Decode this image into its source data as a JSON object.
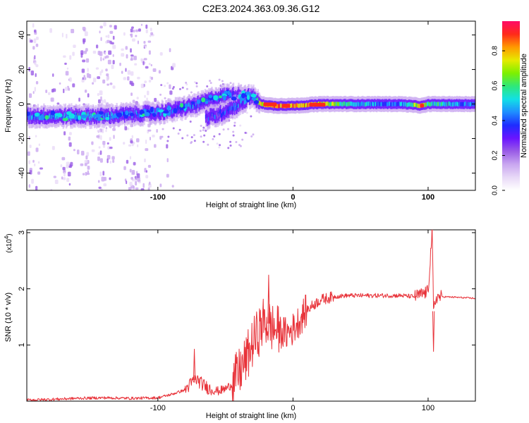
{
  "title": "C2E3.2024.363.09.36.G12",
  "colors": {
    "snr_line": "#e8333a",
    "spectrogram_background": "#ffffff",
    "colormap": [
      "#ffffff",
      "#e8d9f7",
      "#c9a6f0",
      "#9a5ce6",
      "#6a14ff",
      "#1e2cff",
      "#1f8dff",
      "#12e0e6",
      "#2ee87a",
      "#7df000",
      "#e6ea00",
      "#ff9a00",
      "#ff2a1a",
      "#ff0a66"
    ]
  },
  "chart_data": [
    {
      "type": "heatmap",
      "xlabel": "Height of straight line (km)",
      "ylabel": "Frequency (Hz)",
      "xlim": [
        -197,
        135
      ],
      "ylim": [
        -50,
        48
      ],
      "xticks": [
        -100,
        0,
        100
      ],
      "xtick_labels": [
        "-100",
        "0",
        "100"
      ],
      "yticks": [
        -40,
        -20,
        0,
        20,
        40
      ],
      "ytick_labels": [
        "-40",
        "-20",
        "0",
        "20",
        "40"
      ],
      "grid": false,
      "colorbar": {
        "label": "Normalized spectral amplitude",
        "range": [
          0,
          0.97
        ],
        "ticks": [
          0.0,
          0.2,
          0.4,
          0.6,
          0.8
        ],
        "tick_labels": [
          "0.0",
          "0.2",
          "0.4",
          "0.6",
          "0.8"
        ]
      },
      "ridge": [
        {
          "x": -197,
          "f": -7,
          "a": 0.42
        },
        {
          "x": -180,
          "f": -7,
          "a": 0.45
        },
        {
          "x": -160,
          "f": -7,
          "a": 0.5
        },
        {
          "x": -140,
          "f": -7,
          "a": 0.48
        },
        {
          "x": -120,
          "f": -6,
          "a": 0.42
        },
        {
          "x": -100,
          "f": -5,
          "a": 0.38
        },
        {
          "x": -85,
          "f": -3,
          "a": 0.42
        },
        {
          "x": -70,
          "f": 0,
          "a": 0.42
        },
        {
          "x": -60,
          "f": 3,
          "a": 0.38
        },
        {
          "x": -50,
          "f": 5,
          "a": 0.35
        },
        {
          "x": -40,
          "f": 5,
          "a": 0.4
        },
        {
          "x": -30,
          "f": 4,
          "a": 0.42
        },
        {
          "x": -24,
          "f": 0,
          "a": 0.75
        },
        {
          "x": -15,
          "f": -1,
          "a": 0.85
        },
        {
          "x": 0,
          "f": -1,
          "a": 0.85
        },
        {
          "x": 20,
          "f": 0,
          "a": 0.8
        },
        {
          "x": 40,
          "f": 0,
          "a": 0.55
        },
        {
          "x": 60,
          "f": 0,
          "a": 0.45
        },
        {
          "x": 80,
          "f": 0,
          "a": 0.45
        },
        {
          "x": 95,
          "f": -1,
          "a": 0.8
        },
        {
          "x": 100,
          "f": 0,
          "a": 0.6
        },
        {
          "x": 135,
          "f": 0,
          "a": 0.4
        }
      ],
      "branch": [
        {
          "x": -65,
          "f": -8,
          "a": 0.35
        },
        {
          "x": -55,
          "f": -6,
          "a": 0.35
        },
        {
          "x": -45,
          "f": -2,
          "a": 0.4
        },
        {
          "x": -35,
          "f": 2,
          "a": 0.42
        }
      ],
      "noise_columns_x": [
        -193,
        -168,
        -155,
        -143,
        -136,
        -123,
        -118,
        -108
      ]
    },
    {
      "type": "line",
      "xlabel": "Height of straight line (km)",
      "ylabel": "SNR (10 * v/v)",
      "y_multiplier": "(x10^4)",
      "y_multiplier_base": "(x10",
      "y_multiplier_exp": "4",
      "xlim": [
        -197,
        135
      ],
      "ylim": [
        0,
        3.05
      ],
      "xticks": [
        -100,
        0,
        100
      ],
      "xtick_labels": [
        "-100",
        "0",
        "100"
      ],
      "yticks": [
        1,
        2,
        3
      ],
      "ytick_labels": [
        "1",
        "2",
        "3"
      ],
      "grid": false,
      "series": [
        {
          "x": [
            -197,
            -180,
            -160,
            -140,
            -120,
            -100,
            -90,
            -80,
            -72,
            -66,
            -60,
            -55,
            -50,
            -45,
            -40,
            -35,
            -30,
            -25,
            -22,
            -18,
            -15,
            -10,
            -5,
            0,
            5,
            10,
            20,
            30,
            40,
            50,
            60,
            70,
            80,
            90,
            95,
            100,
            103,
            104,
            106,
            110,
            120,
            135
          ],
          "y": [
            0.02,
            0.03,
            0.05,
            0.06,
            0.05,
            0.06,
            0.12,
            0.2,
            0.4,
            0.28,
            0.2,
            0.18,
            0.22,
            0.3,
            0.5,
            0.72,
            1.02,
            1.25,
            1.4,
            1.38,
            1.3,
            1.25,
            1.2,
            1.28,
            1.45,
            1.62,
            1.8,
            1.86,
            1.88,
            1.88,
            1.88,
            1.88,
            1.88,
            1.86,
            1.9,
            1.95,
            3.05,
            1.6,
            1.85,
            1.86,
            1.85,
            1.83
          ],
          "peaks": [
            {
              "x": -73,
              "y": 0.93
            },
            {
              "x": -18,
              "y": 2.25
            },
            {
              "x": 103,
              "y": 3.05
            },
            {
              "x": 104,
              "y": 0.88
            }
          ]
        }
      ]
    }
  ]
}
